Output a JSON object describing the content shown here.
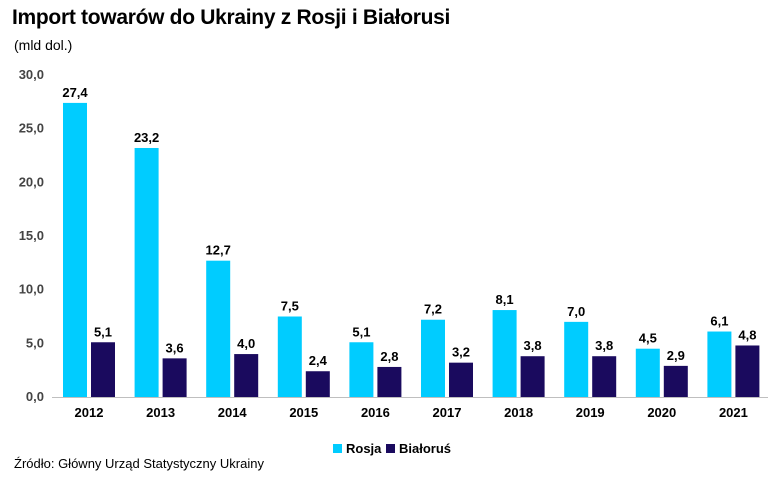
{
  "header": {
    "title": "Import towarów do Ukrainy z Rosji i Białorusi",
    "subtitle": "(mld dol.)"
  },
  "footer": {
    "source": "Źródło: Główny Urząd Statystyczny Ukrainy"
  },
  "chart_data": {
    "type": "bar",
    "title": "Import towarów do Ukrainy z Rosji i Białorusi",
    "subtitle": "(mld dol.)",
    "categories": [
      "2012",
      "2013",
      "2014",
      "2015",
      "2016",
      "2017",
      "2018",
      "2019",
      "2020",
      "2021"
    ],
    "series": [
      {
        "name": "Rosja",
        "color": "#00CCFF",
        "values": [
          27.4,
          23.2,
          12.7,
          7.5,
          5.1,
          7.2,
          8.1,
          7.0,
          4.5,
          6.1
        ]
      },
      {
        "name": "Białoruś",
        "color": "#1A0A5E",
        "values": [
          5.1,
          3.6,
          4.0,
          2.4,
          2.8,
          3.2,
          3.8,
          3.8,
          2.9,
          4.8
        ]
      }
    ],
    "yticks": [
      "0,0",
      "5,0",
      "10,0",
      "15,0",
      "20,0",
      "25,0",
      "30,0"
    ],
    "ylim": [
      0,
      30
    ],
    "grid": false,
    "legend_position": "bottom-center",
    "decimal_separator": ","
  }
}
